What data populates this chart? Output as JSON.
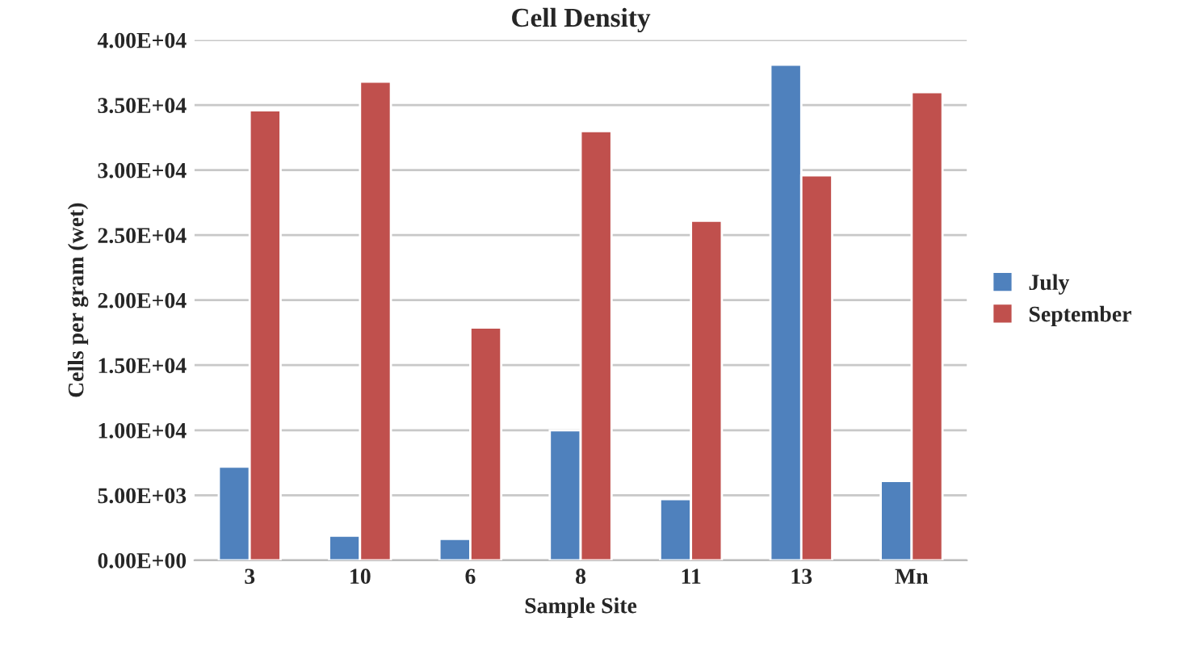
{
  "chart_data": {
    "type": "bar",
    "title": "Cell Density",
    "xlabel": "Sample Site",
    "ylabel": "Cells per gram (wet)",
    "categories": [
      "3",
      "10",
      "6",
      "8",
      "11",
      "13",
      "Mn"
    ],
    "series": [
      {
        "name": "July",
        "color": "#4f81bd",
        "values": [
          7200,
          1900,
          1650,
          10000,
          4700,
          38100,
          6100
        ]
      },
      {
        "name": "September",
        "color": "#c0504d",
        "values": [
          34600,
          36800,
          17900,
          33000,
          26100,
          29600,
          36000
        ]
      }
    ],
    "ylim": [
      0,
      40000
    ],
    "yticks": [
      {
        "value": 0,
        "label": "0.00E+00"
      },
      {
        "value": 5000,
        "label": "5.00E+03"
      },
      {
        "value": 10000,
        "label": "1.00E+04"
      },
      {
        "value": 15000,
        "label": "1.50E+04"
      },
      {
        "value": 20000,
        "label": "2.00E+04"
      },
      {
        "value": 25000,
        "label": "2.50E+04"
      },
      {
        "value": 30000,
        "label": "3.00E+04"
      },
      {
        "value": 35000,
        "label": "3.50E+04"
      },
      {
        "value": 40000,
        "label": "4.00E+04"
      }
    ],
    "grid": "y",
    "legend": "right"
  }
}
